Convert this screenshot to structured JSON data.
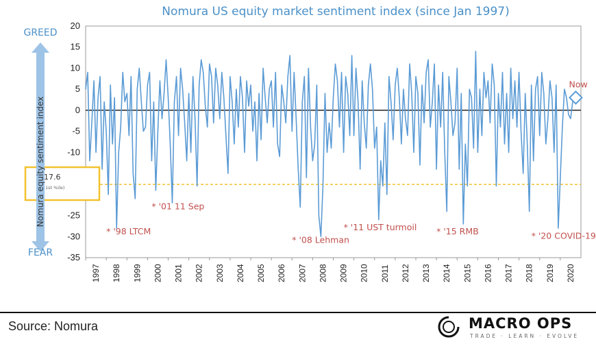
{
  "chart_data": {
    "type": "line",
    "title": "Nomura US equity market sentiment index (since Jan 1997)",
    "ylabel": "Nomura equity sentiment index",
    "y_top_label": "GREED",
    "y_bottom_label": "FEAR",
    "ylim": [
      -35,
      20
    ],
    "yticks": [
      20,
      15,
      10,
      5,
      0,
      -5,
      -10,
      -15,
      -20,
      -25,
      -30,
      -35
    ],
    "xlim": [
      1997,
      2021
    ],
    "xticks": [
      "1997",
      "1998",
      "1999",
      "2000",
      "2001",
      "2002",
      "2003",
      "2004",
      "2005",
      "2006",
      "2007",
      "2008",
      "2009",
      "2010",
      "2011",
      "2012",
      "2013",
      "2014",
      "2015",
      "2016",
      "2017",
      "2018",
      "2019",
      "2020"
    ],
    "series": [
      {
        "name": "Nomura equity sentiment index",
        "color": "#5b9bd5",
        "x": [
          1997.0,
          1997.1,
          1997.2,
          1997.3,
          1997.4,
          1997.5,
          1997.6,
          1997.7,
          1997.8,
          1997.9,
          1998.0,
          1998.1,
          1998.2,
          1998.3,
          1998.4,
          1998.5,
          1998.6,
          1998.7,
          1998.8,
          1998.9,
          1999.0,
          1999.1,
          1999.2,
          1999.3,
          1999.4,
          1999.5,
          1999.6,
          1999.7,
          1999.8,
          1999.9,
          2000.0,
          2000.1,
          2000.2,
          2000.3,
          2000.4,
          2000.5,
          2000.6,
          2000.7,
          2000.8,
          2000.9,
          2001.0,
          2001.1,
          2001.2,
          2001.3,
          2001.4,
          2001.5,
          2001.6,
          2001.7,
          2001.8,
          2001.9,
          2002.0,
          2002.1,
          2002.2,
          2002.3,
          2002.4,
          2002.5,
          2002.6,
          2002.7,
          2002.8,
          2002.9,
          2003.0,
          2003.1,
          2003.2,
          2003.3,
          2003.4,
          2003.5,
          2003.6,
          2003.7,
          2003.8,
          2003.9,
          2004.0,
          2004.1,
          2004.2,
          2004.3,
          2004.4,
          2004.5,
          2004.6,
          2004.7,
          2004.8,
          2004.9,
          2005.0,
          2005.1,
          2005.2,
          2005.3,
          2005.4,
          2005.5,
          2005.6,
          2005.7,
          2005.8,
          2005.9,
          2006.0,
          2006.1,
          2006.2,
          2006.3,
          2006.4,
          2006.5,
          2006.6,
          2006.7,
          2006.8,
          2006.9,
          2007.0,
          2007.1,
          2007.2,
          2007.3,
          2007.4,
          2007.5,
          2007.6,
          2007.7,
          2007.8,
          2007.9,
          2008.0,
          2008.1,
          2008.2,
          2008.3,
          2008.4,
          2008.5,
          2008.6,
          2008.7,
          2008.8,
          2008.9,
          2009.0,
          2009.1,
          2009.2,
          2009.3,
          2009.4,
          2009.5,
          2009.6,
          2009.7,
          2009.8,
          2009.9,
          2010.0,
          2010.1,
          2010.2,
          2010.3,
          2010.4,
          2010.5,
          2010.6,
          2010.7,
          2010.8,
          2010.9,
          2011.0,
          2011.1,
          2011.2,
          2011.3,
          2011.4,
          2011.5,
          2011.6,
          2011.7,
          2011.8,
          2011.9,
          2012.0,
          2012.1,
          2012.2,
          2012.3,
          2012.4,
          2012.5,
          2012.6,
          2012.7,
          2012.8,
          2012.9,
          2013.0,
          2013.1,
          2013.2,
          2013.3,
          2013.4,
          2013.5,
          2013.6,
          2013.7,
          2013.8,
          2013.9,
          2014.0,
          2014.1,
          2014.2,
          2014.3,
          2014.4,
          2014.5,
          2014.6,
          2014.7,
          2014.8,
          2014.9,
          2015.0,
          2015.1,
          2015.2,
          2015.3,
          2015.4,
          2015.5,
          2015.6,
          2015.7,
          2015.8,
          2015.9,
          2016.0,
          2016.1,
          2016.2,
          2016.3,
          2016.4,
          2016.5,
          2016.6,
          2016.7,
          2016.8,
          2016.9,
          2017.0,
          2017.1,
          2017.2,
          2017.3,
          2017.4,
          2017.5,
          2017.6,
          2017.7,
          2017.8,
          2017.9,
          2018.0,
          2018.1,
          2018.2,
          2018.3,
          2018.4,
          2018.5,
          2018.6,
          2018.7,
          2018.8,
          2018.9,
          2019.0,
          2019.1,
          2019.2,
          2019.3,
          2019.4,
          2019.5,
          2019.6,
          2019.7,
          2019.8,
          2019.9,
          2020.0,
          2020.1,
          2020.2,
          2020.3,
          2020.4,
          2020.5,
          2020.6,
          2020.7
        ],
        "values": [
          5,
          9,
          -12,
          -3,
          7,
          -10,
          3,
          8,
          -14,
          2,
          -5,
          -20,
          6,
          -8,
          3,
          -28,
          -10,
          -4,
          9,
          2,
          4,
          -6,
          8,
          -15,
          -21,
          5,
          10,
          2,
          -5,
          -4,
          6,
          9,
          -12,
          2,
          -19,
          -5,
          7,
          -2,
          4,
          12,
          3,
          -8,
          -22,
          2,
          8,
          -6,
          10,
          5,
          -3,
          -12,
          4,
          -10,
          8,
          -2,
          -18,
          6,
          12,
          9,
          1,
          -4,
          11,
          8,
          -3,
          10,
          6,
          -2,
          9,
          3,
          -6,
          -15,
          8,
          2,
          -8,
          5,
          -4,
          8,
          3,
          -10,
          7,
          1,
          6,
          -5,
          2,
          -12,
          4,
          -7,
          10,
          3,
          -3,
          5,
          7,
          -4,
          9,
          -8,
          -11,
          6,
          2,
          -3,
          8,
          13,
          -5,
          9,
          -2,
          -14,
          -23,
          2,
          8,
          -16,
          10,
          -4,
          -12,
          -8,
          6,
          -25,
          -30,
          -18,
          4,
          -10,
          -3,
          -9,
          3,
          11,
          7,
          -4,
          9,
          -10,
          8,
          4,
          -6,
          13,
          -6,
          10,
          2,
          -14,
          7,
          -3,
          -9,
          6,
          11,
          5,
          -9,
          -4,
          -26,
          -12,
          -18,
          -3,
          -20,
          8,
          2,
          -7,
          6,
          10,
          3,
          -8,
          5,
          -2,
          -6,
          11,
          4,
          -10,
          8,
          4,
          -13,
          6,
          -3,
          9,
          12,
          -4,
          2,
          11,
          -14,
          6,
          -4,
          9,
          -10,
          -24,
          8,
          2,
          -6,
          -3,
          10,
          -14,
          4,
          -27,
          -8,
          -18,
          5,
          3,
          -9,
          14,
          -10,
          5,
          -6,
          9,
          3,
          7,
          -3,
          11,
          6,
          -18,
          4,
          -4,
          9,
          -8,
          4,
          -10,
          10,
          -2,
          7,
          -4,
          9,
          -5,
          -15,
          4,
          -8,
          -24,
          6,
          -12,
          5,
          8,
          -6,
          9,
          4,
          -8,
          -2,
          7,
          3,
          -10,
          6,
          -28,
          -16,
          -4,
          5,
          3,
          -1,
          -2,
          2,
          3
        ]
      }
    ],
    "reference_line": {
      "value": 0,
      "color": "#222222"
    },
    "threshold": {
      "value": -17.6,
      "label": "-17.6",
      "sublabel": "(+1st %ile)",
      "color": "#f2c12e"
    },
    "annotations": [
      {
        "text": "* '98 LTCM",
        "x": 1998.0,
        "y": -29.5
      },
      {
        "text": "* '01 11 Sep",
        "x": 2000.2,
        "y": -23.5
      },
      {
        "text": "* '08 Lehman",
        "x": 2007.0,
        "y": -31.5
      },
      {
        "text": "* '11 UST turmoil",
        "x": 2009.5,
        "y": -28.5
      },
      {
        "text": "* '15 RMB",
        "x": 2014.0,
        "y": -29.5
      },
      {
        "text": "* '20 COVID-19",
        "x": 2018.6,
        "y": -30.5
      }
    ],
    "now_marker": {
      "label": "Now",
      "x": 2020.75,
      "y": 3
    }
  },
  "footer": {
    "source": "Source: Nomura",
    "brand": "MACRO OPS",
    "tagline": "TRADE · LEARN · EVOLVE"
  }
}
